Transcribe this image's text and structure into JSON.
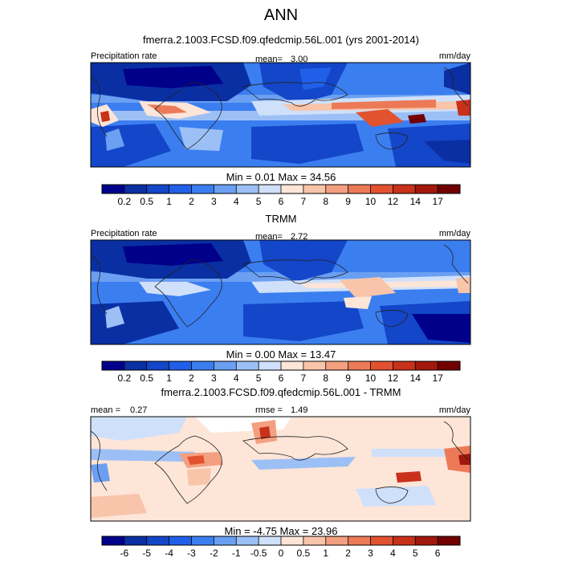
{
  "title": "ANN",
  "chart_data": [
    {
      "type": "heatmap",
      "title": "fmerra.2.1003.FCSD.f09.qfedcmip.56L.001 (yrs 2001-2014)",
      "left_label": "Precipitation rate",
      "mean_label": "mean=",
      "mean_value": "3.00",
      "units": "mm/day",
      "min_label": "Min =",
      "min_value": "0.01",
      "max_label": "Max =",
      "max_value": "34.56",
      "colorbar_ticks": [
        "0.2",
        "0.5",
        "1",
        "2",
        "3",
        "4",
        "5",
        "6",
        "7",
        "8",
        "9",
        "10",
        "12",
        "14",
        "17"
      ],
      "colorbar_colors": [
        "#00008b",
        "#0a2fa3",
        "#1346c8",
        "#2060e8",
        "#3b7ef0",
        "#6a9ff2",
        "#9cc0f6",
        "#cfe0fa",
        "#fde5d8",
        "#f8c4aa",
        "#f2a080",
        "#ec7a57",
        "#e2522f",
        "#c8311a",
        "#a2180d",
        "#720000"
      ]
    },
    {
      "type": "heatmap",
      "title": "TRMM",
      "left_label": "Precipitation rate",
      "mean_label": "mean=",
      "mean_value": "2.72",
      "units": "mm/day",
      "min_label": "Min =",
      "min_value": "0.00",
      "max_label": "Max =",
      "max_value": "13.47",
      "colorbar_ticks": [
        "0.2",
        "0.5",
        "1",
        "2",
        "3",
        "4",
        "5",
        "6",
        "7",
        "8",
        "9",
        "10",
        "12",
        "14",
        "17"
      ],
      "colorbar_colors": [
        "#00008b",
        "#0a2fa3",
        "#1346c8",
        "#2060e8",
        "#3b7ef0",
        "#6a9ff2",
        "#9cc0f6",
        "#cfe0fa",
        "#fde5d8",
        "#f8c4aa",
        "#f2a080",
        "#ec7a57",
        "#e2522f",
        "#c8311a",
        "#a2180d",
        "#720000"
      ]
    },
    {
      "type": "heatmap",
      "title": "fmerra.2.1003.FCSD.f09.qfedcmip.56L.001 - TRMM",
      "left_label": "mean =",
      "left_value": "0.27",
      "rmse_label": "rmse =",
      "rmse_value": "1.49",
      "units": "mm/day",
      "min_label": "Min =",
      "min_value": "-4.75",
      "max_label": "Max =",
      "max_value": "23.96",
      "colorbar_ticks": [
        "-6",
        "-5",
        "-4",
        "-3",
        "-2",
        "-1",
        "-0.5",
        "0",
        "0.5",
        "1",
        "2",
        "3",
        "4",
        "5",
        "6"
      ],
      "colorbar_colors": [
        "#00008b",
        "#0a2fa3",
        "#1346c8",
        "#2060e8",
        "#3b7ef0",
        "#6a9ff2",
        "#9cc0f6",
        "#cfe0fa",
        "#fde5d8",
        "#f8c4aa",
        "#f2a080",
        "#ec7a57",
        "#e2522f",
        "#c8311a",
        "#a2180d",
        "#720000"
      ]
    }
  ]
}
